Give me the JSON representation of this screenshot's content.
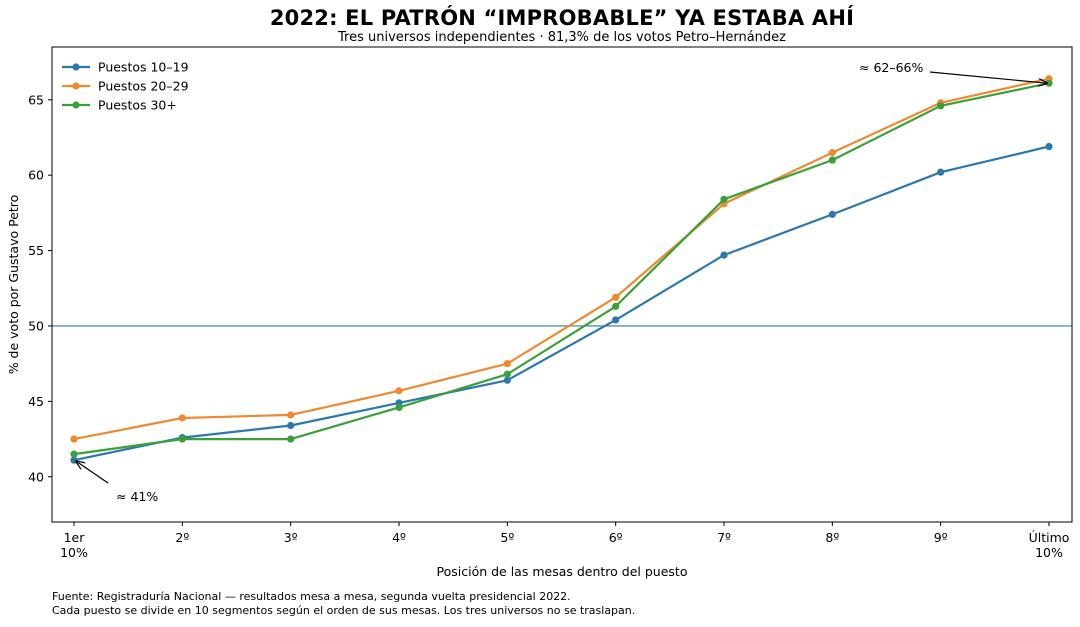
{
  "chart_data": {
    "type": "line",
    "title": "2022: EL PATRÓN “IMPROBABLE” YA ESTABA AHÍ",
    "subtitle": "Tres universos independientes · 81,3% de los votos Petro–Hernández",
    "xlabel": "Posición de las mesas dentro del puesto",
    "ylabel": "% de voto por Gustavo Petro",
    "categories": [
      [
        "1er",
        "10%"
      ],
      [
        "2º"
      ],
      [
        "3º"
      ],
      [
        "4º"
      ],
      [
        "5º"
      ],
      [
        "6º"
      ],
      [
        "7º"
      ],
      [
        "8º"
      ],
      [
        "9º"
      ],
      [
        "Último",
        "10%"
      ]
    ],
    "ylim": [
      37.0,
      68.5
    ],
    "yticks": [
      40,
      45,
      50,
      55,
      60,
      65
    ],
    "hline": 50,
    "grid": false,
    "legend_position": "top-left",
    "series": [
      {
        "name": "Puestos 10–19",
        "color": "#2b78b0",
        "values": [
          41.1,
          42.6,
          43.4,
          44.9,
          46.4,
          50.4,
          54.7,
          57.4,
          60.2,
          61.9
        ]
      },
      {
        "name": "Puestos 20–29",
        "color": "#f0892e",
        "values": [
          42.5,
          43.9,
          44.1,
          45.7,
          47.5,
          51.9,
          58.1,
          61.5,
          64.8,
          66.4
        ]
      },
      {
        "name": "Puestos 30+",
        "color": "#39a03a",
        "values": [
          41.5,
          42.5,
          42.5,
          44.6,
          46.8,
          51.3,
          58.4,
          61.0,
          64.6,
          66.1
        ]
      }
    ],
    "annotations": [
      {
        "text": "≈ 41%",
        "point": {
          "x_index": 0,
          "y": 41.1
        }
      },
      {
        "text": "≈ 62–66%",
        "point": {
          "x_index": 9,
          "y": 66.1
        }
      }
    ]
  },
  "footer": {
    "line1": "Fuente: Registraduría Nacional — resultados mesa a mesa, segunda vuelta presidencial 2022.",
    "line2": "Cada puesto se divide en 10 segmentos según el orden de sus mesas. Los tres universos no se traslapan."
  }
}
